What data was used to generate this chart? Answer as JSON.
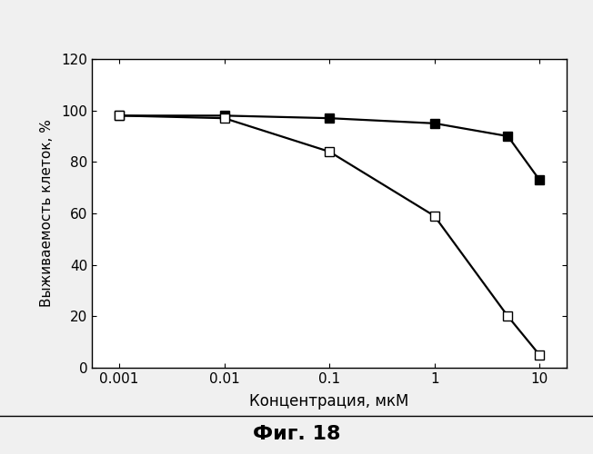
{
  "x_values": [
    0.001,
    0.01,
    0.1,
    1,
    5,
    10
  ],
  "series1_y": [
    98,
    98,
    97,
    95,
    90,
    73
  ],
  "series2_y": [
    98,
    97,
    84,
    59,
    20,
    5
  ],
  "series1_marker": "s",
  "series2_marker": "s",
  "line_color": "#000000",
  "marker_color": "#000000",
  "marker_size": 7,
  "line_width": 1.6,
  "xlabel": "Концентрация, мкМ",
  "ylabel": "Выживаемость клеток, %",
  "title": "Фиг. 18",
  "ylim": [
    0,
    120
  ],
  "yticks": [
    0,
    20,
    40,
    60,
    80,
    100,
    120
  ],
  "xticks": [
    0.001,
    0.01,
    0.1,
    1,
    10
  ],
  "xtick_labels": [
    "0.001",
    "0.01",
    "0.1",
    "1",
    "10"
  ],
  "background_color": "#f0f0f0",
  "plot_bg_color": "#ffffff",
  "xlabel_fontsize": 12,
  "ylabel_fontsize": 11,
  "tick_fontsize": 11,
  "title_fontsize": 16
}
